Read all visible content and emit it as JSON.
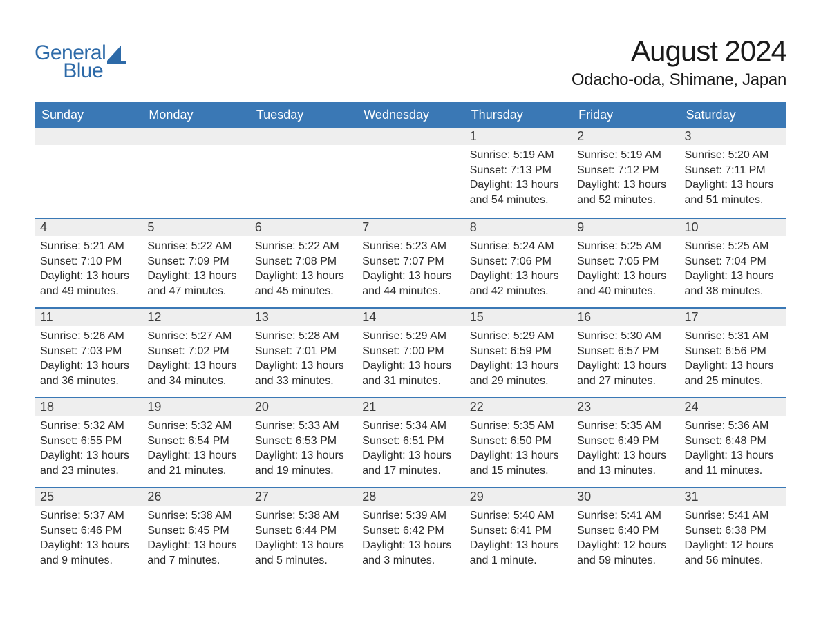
{
  "brand": {
    "line1": "General",
    "line2": "Blue",
    "accent_color": "#2d6aa8"
  },
  "title": {
    "month_year": "August 2024",
    "location": "Odacho-oda, Shimane, Japan"
  },
  "colors": {
    "header_bg": "#3a78b5",
    "header_text": "#ffffff",
    "daynum_bg": "#eeeeee",
    "daynum_border": "#3a78b5",
    "body_text": "#2a2a2a",
    "page_bg": "#ffffff"
  },
  "weekdays": [
    "Sunday",
    "Monday",
    "Tuesday",
    "Wednesday",
    "Thursday",
    "Friday",
    "Saturday"
  ],
  "weeks": [
    [
      null,
      null,
      null,
      null,
      {
        "n": "1",
        "sunrise": "5:19 AM",
        "sunset": "7:13 PM",
        "daylight": "13 hours and 54 minutes."
      },
      {
        "n": "2",
        "sunrise": "5:19 AM",
        "sunset": "7:12 PM",
        "daylight": "13 hours and 52 minutes."
      },
      {
        "n": "3",
        "sunrise": "5:20 AM",
        "sunset": "7:11 PM",
        "daylight": "13 hours and 51 minutes."
      }
    ],
    [
      {
        "n": "4",
        "sunrise": "5:21 AM",
        "sunset": "7:10 PM",
        "daylight": "13 hours and 49 minutes."
      },
      {
        "n": "5",
        "sunrise": "5:22 AM",
        "sunset": "7:09 PM",
        "daylight": "13 hours and 47 minutes."
      },
      {
        "n": "6",
        "sunrise": "5:22 AM",
        "sunset": "7:08 PM",
        "daylight": "13 hours and 45 minutes."
      },
      {
        "n": "7",
        "sunrise": "5:23 AM",
        "sunset": "7:07 PM",
        "daylight": "13 hours and 44 minutes."
      },
      {
        "n": "8",
        "sunrise": "5:24 AM",
        "sunset": "7:06 PM",
        "daylight": "13 hours and 42 minutes."
      },
      {
        "n": "9",
        "sunrise": "5:25 AM",
        "sunset": "7:05 PM",
        "daylight": "13 hours and 40 minutes."
      },
      {
        "n": "10",
        "sunrise": "5:25 AM",
        "sunset": "7:04 PM",
        "daylight": "13 hours and 38 minutes."
      }
    ],
    [
      {
        "n": "11",
        "sunrise": "5:26 AM",
        "sunset": "7:03 PM",
        "daylight": "13 hours and 36 minutes."
      },
      {
        "n": "12",
        "sunrise": "5:27 AM",
        "sunset": "7:02 PM",
        "daylight": "13 hours and 34 minutes."
      },
      {
        "n": "13",
        "sunrise": "5:28 AM",
        "sunset": "7:01 PM",
        "daylight": "13 hours and 33 minutes."
      },
      {
        "n": "14",
        "sunrise": "5:29 AM",
        "sunset": "7:00 PM",
        "daylight": "13 hours and 31 minutes."
      },
      {
        "n": "15",
        "sunrise": "5:29 AM",
        "sunset": "6:59 PM",
        "daylight": "13 hours and 29 minutes."
      },
      {
        "n": "16",
        "sunrise": "5:30 AM",
        "sunset": "6:57 PM",
        "daylight": "13 hours and 27 minutes."
      },
      {
        "n": "17",
        "sunrise": "5:31 AM",
        "sunset": "6:56 PM",
        "daylight": "13 hours and 25 minutes."
      }
    ],
    [
      {
        "n": "18",
        "sunrise": "5:32 AM",
        "sunset": "6:55 PM",
        "daylight": "13 hours and 23 minutes."
      },
      {
        "n": "19",
        "sunrise": "5:32 AM",
        "sunset": "6:54 PM",
        "daylight": "13 hours and 21 minutes."
      },
      {
        "n": "20",
        "sunrise": "5:33 AM",
        "sunset": "6:53 PM",
        "daylight": "13 hours and 19 minutes."
      },
      {
        "n": "21",
        "sunrise": "5:34 AM",
        "sunset": "6:51 PM",
        "daylight": "13 hours and 17 minutes."
      },
      {
        "n": "22",
        "sunrise": "5:35 AM",
        "sunset": "6:50 PM",
        "daylight": "13 hours and 15 minutes."
      },
      {
        "n": "23",
        "sunrise": "5:35 AM",
        "sunset": "6:49 PM",
        "daylight": "13 hours and 13 minutes."
      },
      {
        "n": "24",
        "sunrise": "5:36 AM",
        "sunset": "6:48 PM",
        "daylight": "13 hours and 11 minutes."
      }
    ],
    [
      {
        "n": "25",
        "sunrise": "5:37 AM",
        "sunset": "6:46 PM",
        "daylight": "13 hours and 9 minutes."
      },
      {
        "n": "26",
        "sunrise": "5:38 AM",
        "sunset": "6:45 PM",
        "daylight": "13 hours and 7 minutes."
      },
      {
        "n": "27",
        "sunrise": "5:38 AM",
        "sunset": "6:44 PM",
        "daylight": "13 hours and 5 minutes."
      },
      {
        "n": "28",
        "sunrise": "5:39 AM",
        "sunset": "6:42 PM",
        "daylight": "13 hours and 3 minutes."
      },
      {
        "n": "29",
        "sunrise": "5:40 AM",
        "sunset": "6:41 PM",
        "daylight": "13 hours and 1 minute."
      },
      {
        "n": "30",
        "sunrise": "5:41 AM",
        "sunset": "6:40 PM",
        "daylight": "12 hours and 59 minutes."
      },
      {
        "n": "31",
        "sunrise": "5:41 AM",
        "sunset": "6:38 PM",
        "daylight": "12 hours and 56 minutes."
      }
    ]
  ],
  "labels": {
    "sunrise": "Sunrise:",
    "sunset": "Sunset:",
    "daylight": "Daylight:"
  }
}
